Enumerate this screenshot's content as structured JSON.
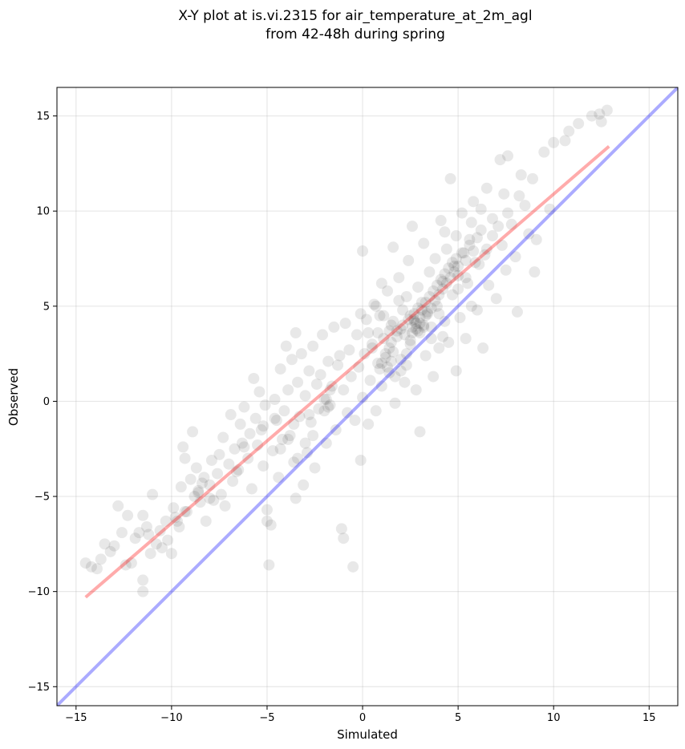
{
  "chart_data": {
    "type": "scatter",
    "title": [
      "X-Y plot at is.vi.2315 for air_temperature_at_2m_agl",
      "from 42-48h during spring"
    ],
    "xlabel": "Simulated",
    "ylabel": "Observed",
    "xlim": [
      -16,
      16.5
    ],
    "ylim": [
      -16,
      16.5
    ],
    "xticks": [
      -15,
      -10,
      -5,
      0,
      5,
      10,
      15
    ],
    "yticks": [
      -15,
      -10,
      -5,
      0,
      5,
      10,
      15
    ],
    "xtick_labels": [
      "−15",
      "−10",
      "−5",
      "0",
      "5",
      "10",
      "15"
    ],
    "ytick_labels": [
      "−15",
      "−10",
      "−5",
      "0",
      "5",
      "10",
      "15"
    ],
    "grid": true,
    "point_color": "#000000",
    "point_alpha": 0.09,
    "lines": [
      {
        "role": "identity",
        "color": "#0000ff",
        "alpha": 0.33,
        "x": [
          -16,
          16.5
        ],
        "y": [
          -16,
          16.5
        ]
      },
      {
        "role": "fit",
        "color": "#ff0000",
        "alpha": 0.33,
        "x": [
          -14.5,
          12.9
        ],
        "y": [
          -10.3,
          13.4
        ]
      }
    ],
    "points": [
      [
        -14.5,
        -8.5
      ],
      [
        -14.2,
        -8.7
      ],
      [
        -13.9,
        -8.8
      ],
      [
        -13.7,
        -8.3
      ],
      [
        -13.5,
        -7.5
      ],
      [
        -13.2,
        -7.9
      ],
      [
        -13.0,
        -7.6
      ],
      [
        -12.8,
        -5.5
      ],
      [
        -12.6,
        -6.9
      ],
      [
        -12.4,
        -8.6
      ],
      [
        -12.3,
        -6.0
      ],
      [
        -12.1,
        -8.5
      ],
      [
        -11.9,
        -7.2
      ],
      [
        -11.7,
        -6.9
      ],
      [
        -11.5,
        -6.0
      ],
      [
        -11.3,
        -6.6
      ],
      [
        -11.2,
        -7.0
      ],
      [
        -11.5,
        -9.4
      ],
      [
        -11.5,
        -10.0
      ],
      [
        -11.1,
        -8.0
      ],
      [
        -11.0,
        -4.9
      ],
      [
        -10.8,
        -7.5
      ],
      [
        -10.6,
        -6.8
      ],
      [
        -10.5,
        -7.7
      ],
      [
        -10.3,
        -6.3
      ],
      [
        -10.2,
        -7.3
      ],
      [
        -10.0,
        -8.0
      ],
      [
        -9.9,
        -5.6
      ],
      [
        -9.8,
        -6.1
      ],
      [
        -9.6,
        -6.6
      ],
      [
        -9.5,
        -4.5
      ],
      [
        -9.4,
        -2.4
      ],
      [
        -9.3,
        -3.0
      ],
      [
        -9.2,
        -5.8
      ],
      [
        -9.0,
        -4.1
      ],
      [
        -8.9,
        -1.6
      ],
      [
        -8.8,
        -5.0
      ],
      [
        -8.7,
        -3.5
      ],
      [
        -8.6,
        -4.7
      ],
      [
        -8.5,
        -5.3
      ],
      [
        -8.3,
        -4.0
      ],
      [
        -8.2,
        -6.3
      ],
      [
        -8.0,
        -4.4
      ],
      [
        -7.9,
        -3.1
      ],
      [
        -7.8,
        -5.2
      ],
      [
        -7.6,
        -3.8
      ],
      [
        -7.5,
        -2.8
      ],
      [
        -7.4,
        -4.9
      ],
      [
        -7.3,
        -1.9
      ],
      [
        -7.2,
        -5.5
      ],
      [
        -7.0,
        -3.3
      ],
      [
        -6.9,
        -0.7
      ],
      [
        -6.8,
        -4.2
      ],
      [
        -6.7,
        -2.5
      ],
      [
        -6.5,
        -3.6
      ],
      [
        -6.4,
        -1.2
      ],
      [
        -6.3,
        -2.2
      ],
      [
        -6.2,
        -0.3
      ],
      [
        -6.0,
        -3.0
      ],
      [
        -5.9,
        -1.7
      ],
      [
        -5.8,
        -4.6
      ],
      [
        -5.7,
        1.2
      ],
      [
        -5.6,
        -0.9
      ],
      [
        -5.5,
        -2.3
      ],
      [
        -5.4,
        0.5
      ],
      [
        -5.3,
        -1.5
      ],
      [
        -5.2,
        -3.4
      ],
      [
        -5.1,
        -0.2
      ],
      [
        -5.0,
        -5.7
      ],
      [
        -5.0,
        -6.3
      ],
      [
        -4.9,
        -8.6
      ],
      [
        -4.8,
        -6.5
      ],
      [
        -4.7,
        -2.6
      ],
      [
        -4.6,
        0.1
      ],
      [
        -4.5,
        -1.0
      ],
      [
        -4.4,
        -4.0
      ],
      [
        -4.3,
        1.7
      ],
      [
        -4.2,
        -2.0
      ],
      [
        -4.1,
        -0.5
      ],
      [
        -4.0,
        2.9
      ],
      [
        -3.9,
        0.6
      ],
      [
        -3.8,
        -1.8
      ],
      [
        -3.7,
        2.2
      ],
      [
        -3.6,
        -3.2
      ],
      [
        -3.5,
        3.6
      ],
      [
        -3.5,
        -5.1
      ],
      [
        -3.4,
        1.0
      ],
      [
        -3.3,
        -0.8
      ],
      [
        -3.2,
        2.5
      ],
      [
        -3.1,
        -4.4
      ],
      [
        -3.0,
        0.3
      ],
      [
        -2.9,
        -2.7
      ],
      [
        -2.8,
        1.6
      ],
      [
        -2.7,
        -1.1
      ],
      [
        -2.6,
        2.9
      ],
      [
        -2.5,
        -3.5
      ],
      [
        -2.4,
        0.9
      ],
      [
        -2.3,
        -0.4
      ],
      [
        -2.2,
        1.4
      ],
      [
        -2.1,
        3.5
      ],
      [
        -2.0,
        0.1
      ],
      [
        -1.9,
        -2.2
      ],
      [
        -1.8,
        2.1
      ],
      [
        -1.7,
        -0.2
      ],
      [
        -1.6,
        0.8
      ],
      [
        -1.5,
        3.9
      ],
      [
        -1.4,
        -1.5
      ],
      [
        -1.3,
        1.9
      ],
      [
        -1.2,
        2.4
      ],
      [
        -1.1,
        -6.7
      ],
      [
        -1.0,
        -7.2
      ],
      [
        -1.0,
        0.6
      ],
      [
        -0.9,
        4.1
      ],
      [
        -0.8,
        -0.6
      ],
      [
        -0.7,
        2.7
      ],
      [
        -0.6,
        1.3
      ],
      [
        -0.5,
        -8.7
      ],
      [
        -0.4,
        -1.0
      ],
      [
        -0.3,
        3.5
      ],
      [
        -0.2,
        1.8
      ],
      [
        -0.1,
        -3.1
      ],
      [
        0.0,
        0.2
      ],
      [
        0.0,
        7.9
      ],
      [
        0.1,
        2.5
      ],
      [
        0.2,
        4.3
      ],
      [
        0.3,
        -1.2
      ],
      [
        0.4,
        1.1
      ],
      [
        0.5,
        3.0
      ],
      [
        0.6,
        5.1
      ],
      [
        0.7,
        -0.5
      ],
      [
        0.8,
        2.0
      ],
      [
        0.9,
        4.5
      ],
      [
        1.0,
        6.2
      ],
      [
        1.0,
        0.8
      ],
      [
        1.1,
        3.3
      ],
      [
        1.2,
        2.5
      ],
      [
        1.3,
        5.8
      ],
      [
        1.4,
        1.5
      ],
      [
        1.5,
        4.0
      ],
      [
        1.6,
        8.1
      ],
      [
        1.7,
        -0.1
      ],
      [
        1.8,
        3.7
      ],
      [
        1.9,
        6.5
      ],
      [
        2.0,
        2.2
      ],
      [
        2.1,
        4.8
      ],
      [
        2.2,
        1.0
      ],
      [
        2.3,
        5.5
      ],
      [
        2.4,
        7.4
      ],
      [
        2.5,
        3.0
      ],
      [
        2.6,
        9.2
      ],
      [
        2.7,
        4.2
      ],
      [
        2.8,
        0.6
      ],
      [
        2.9,
        6.0
      ],
      [
        3.0,
        3.6
      ],
      [
        3.0,
        -1.6
      ],
      [
        3.1,
        5.2
      ],
      [
        3.2,
        8.3
      ],
      [
        3.3,
        2.4
      ],
      [
        3.4,
        4.7
      ],
      [
        3.5,
        6.8
      ],
      [
        3.6,
        3.9
      ],
      [
        3.7,
        1.3
      ],
      [
        3.8,
        7.5
      ],
      [
        3.9,
        5.0
      ],
      [
        4.0,
        2.8
      ],
      [
        4.1,
        9.5
      ],
      [
        4.2,
        6.3
      ],
      [
        4.3,
        4.2
      ],
      [
        4.4,
        8.0
      ],
      [
        4.5,
        3.1
      ],
      [
        4.6,
        11.7
      ],
      [
        4.7,
        5.6
      ],
      [
        4.8,
        7.1
      ],
      [
        4.9,
        1.6
      ],
      [
        5.0,
        6.6
      ],
      [
        5.1,
        4.4
      ],
      [
        5.2,
        9.9
      ],
      [
        5.3,
        7.8
      ],
      [
        5.4,
        3.3
      ],
      [
        5.5,
        6.2
      ],
      [
        5.6,
        8.5
      ],
      [
        5.7,
        5.0
      ],
      [
        5.8,
        10.5
      ],
      [
        5.9,
        7.3
      ],
      [
        6.0,
        4.8
      ],
      [
        6.2,
        9.0
      ],
      [
        6.3,
        2.8
      ],
      [
        6.4,
        7.7
      ],
      [
        6.5,
        11.2
      ],
      [
        6.6,
        6.1
      ],
      [
        6.8,
        9.6
      ],
      [
        7.0,
        5.4
      ],
      [
        7.2,
        12.7
      ],
      [
        7.3,
        8.2
      ],
      [
        7.4,
        10.9
      ],
      [
        7.5,
        6.9
      ],
      [
        7.6,
        12.9
      ],
      [
        7.8,
        9.3
      ],
      [
        8.0,
        7.6
      ],
      [
        8.1,
        4.7
      ],
      [
        8.3,
        11.9
      ],
      [
        8.5,
        10.3
      ],
      [
        8.7,
        8.8
      ],
      [
        8.9,
        11.7
      ],
      [
        9.0,
        6.8
      ],
      [
        9.1,
        8.5
      ],
      [
        9.5,
        13.1
      ],
      [
        9.8,
        10.1
      ],
      [
        10.0,
        13.6
      ],
      [
        10.6,
        13.7
      ],
      [
        10.8,
        14.2
      ],
      [
        11.3,
        14.6
      ],
      [
        12.0,
        15.0
      ],
      [
        12.4,
        15.1
      ],
      [
        12.5,
        14.7
      ],
      [
        12.8,
        15.3
      ],
      [
        1.0,
        2.0
      ],
      [
        1.2,
        2.3
      ],
      [
        1.4,
        2.8
      ],
      [
        1.5,
        3.1
      ],
      [
        1.3,
        1.8
      ],
      [
        1.6,
        2.6
      ],
      [
        1.8,
        3.4
      ],
      [
        2.0,
        3.8
      ],
      [
        2.1,
        4.0
      ],
      [
        2.2,
        3.5
      ],
      [
        2.4,
        4.3
      ],
      [
        2.5,
        4.5
      ],
      [
        2.6,
        3.9
      ],
      [
        2.7,
        4.6
      ],
      [
        2.8,
        4.1
      ],
      [
        2.9,
        3.7
      ],
      [
        3.0,
        4.4
      ],
      [
        3.1,
        4.8
      ],
      [
        3.2,
        4.0
      ],
      [
        3.3,
        5.2
      ],
      [
        3.4,
        4.6
      ],
      [
        3.5,
        5.5
      ],
      [
        3.6,
        4.9
      ],
      [
        3.7,
        5.8
      ],
      [
        3.8,
        5.3
      ],
      [
        3.9,
        6.1
      ],
      [
        4.0,
        5.6
      ],
      [
        4.1,
        6.4
      ],
      [
        4.2,
        5.9
      ],
      [
        4.3,
        6.7
      ],
      [
        4.4,
        6.2
      ],
      [
        4.5,
        7.0
      ],
      [
        4.6,
        6.5
      ],
      [
        4.7,
        7.3
      ],
      [
        4.8,
        6.8
      ],
      [
        4.9,
        7.5
      ],
      [
        5.0,
        7.1
      ],
      [
        5.2,
        7.8
      ],
      [
        5.4,
        7.4
      ],
      [
        5.6,
        8.2
      ],
      [
        5.8,
        7.9
      ],
      [
        6.0,
        8.6
      ],
      [
        2.6,
        3.6
      ],
      [
        2.8,
        3.8
      ],
      [
        3.0,
        4.1
      ],
      [
        2.7,
        4.3
      ],
      [
        3.2,
        3.9
      ],
      [
        2.5,
        3.2
      ],
      [
        3.3,
        4.5
      ],
      [
        2.9,
        4.9
      ],
      [
        -0.1,
        4.6
      ],
      [
        0.3,
        3.6
      ],
      [
        0.7,
        5.0
      ],
      [
        1.1,
        4.5
      ],
      [
        1.9,
        5.3
      ],
      [
        0.5,
        2.8
      ],
      [
        0.8,
        3.6
      ],
      [
        1.5,
        2.1
      ],
      [
        2.3,
        2.5
      ],
      [
        1.7,
        1.3
      ],
      [
        -1.8,
        -0.3
      ],
      [
        -1.9,
        0.1
      ],
      [
        -1.7,
        0.6
      ],
      [
        -2.0,
        -0.5
      ],
      [
        -2.6,
        -1.8
      ],
      [
        -3.0,
        -2.2
      ],
      [
        -3.4,
        -3.0
      ],
      [
        -3.9,
        -2.0
      ],
      [
        -4.3,
        -2.5
      ],
      [
        -3.6,
        -1.2
      ],
      [
        -8.6,
        -4.8
      ],
      [
        -8.4,
        -4.3
      ],
      [
        -8.0,
        -5.1
      ],
      [
        -9.3,
        -5.8
      ],
      [
        -9.7,
        -6.3
      ],
      [
        -6.6,
        -3.7
      ],
      [
        -6.2,
        -2.4
      ],
      [
        -5.2,
        -1.3
      ],
      [
        -4.6,
        -0.9
      ],
      [
        -2.8,
        -0.7
      ],
      [
        0.9,
        1.7
      ],
      [
        1.4,
        3.7
      ],
      [
        1.6,
        4.2
      ],
      [
        2.0,
        1.6
      ],
      [
        2.3,
        1.9
      ],
      [
        3.6,
        3.3
      ],
      [
        4.2,
        3.4
      ],
      [
        4.0,
        4.6
      ],
      [
        5.0,
        5.9
      ],
      [
        5.4,
        6.5
      ],
      [
        6.1,
        7.2
      ],
      [
        6.5,
        8.0
      ],
      [
        6.8,
        8.7
      ],
      [
        7.1,
        9.2
      ],
      [
        7.6,
        9.9
      ],
      [
        8.2,
        10.8
      ],
      [
        6.2,
        10.1
      ],
      [
        5.7,
        9.4
      ],
      [
        4.9,
        8.7
      ],
      [
        4.3,
        8.9
      ]
    ]
  }
}
